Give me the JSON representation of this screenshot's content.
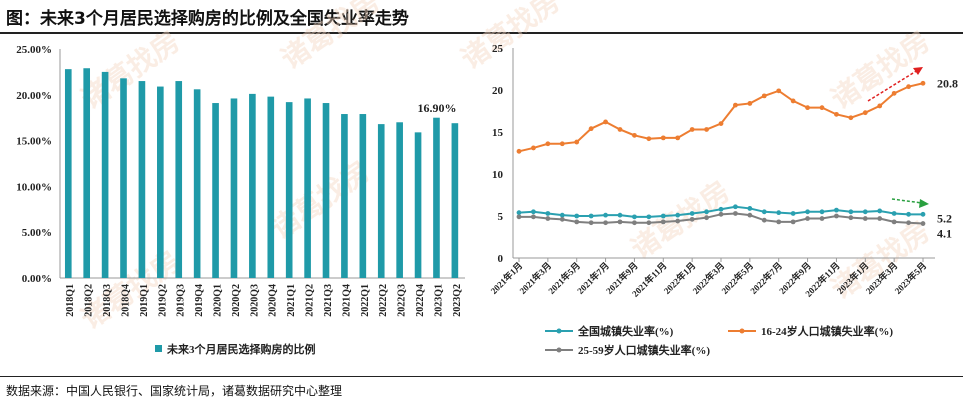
{
  "title": "图：未来3个月居民选择购房的比例及全国失业率走势",
  "note": "数据来源：中国人民银行、国家统计局，诸葛数据研究中心整理",
  "watermark": "诸葛找房",
  "chart_data": [
    {
      "type": "bar",
      "categories": [
        "2018Q1",
        "2018Q2",
        "2018Q3",
        "2018Q4",
        "2019Q1",
        "2019Q2",
        "2019Q3",
        "2019Q4",
        "2020Q1",
        "2020Q2",
        "2020Q3",
        "2020Q4",
        "2021Q1",
        "2021Q2",
        "2021Q3",
        "2021Q4",
        "2022Q1",
        "2022Q2",
        "2022Q3",
        "2022Q4",
        "2023Q1",
        "2023Q2"
      ],
      "series": [
        {
          "name": "未来3个月居民选择购房的比例",
          "values": [
            22.8,
            22.9,
            22.5,
            21.8,
            21.5,
            20.9,
            21.5,
            20.6,
            19.1,
            19.6,
            20.1,
            19.8,
            19.2,
            19.6,
            19.1,
            17.9,
            17.9,
            16.8,
            17.0,
            15.9,
            17.5,
            16.9
          ]
        }
      ],
      "yticks": [
        "0.00%",
        "5.00%",
        "10.00%",
        "15.00%",
        "20.00%",
        "25.00%"
      ],
      "ylim": [
        0,
        25
      ],
      "color": "#1f9aa8",
      "data_label": "16.90%",
      "legend": "bottom"
    },
    {
      "type": "line",
      "x": [
        "2021年1月",
        "2021年2月",
        "2021年3月",
        "2021年4月",
        "2021年5月",
        "2021年6月",
        "2021年7月",
        "2021年8月",
        "2021年9月",
        "2021年10月",
        "2021年11月",
        "2021年12月",
        "2022年1月",
        "2022年2月",
        "2022年3月",
        "2022年4月",
        "2022年5月",
        "2022年6月",
        "2022年7月",
        "2022年8月",
        "2022年9月",
        "2022年10月",
        "2022年11月",
        "2022年12月",
        "2023年1月",
        "2023年2月",
        "2023年3月",
        "2023年4月",
        "2023年5月"
      ],
      "xticks": [
        "2021年1月",
        "2021年3月",
        "2021年5月",
        "2021年7月",
        "2021年9月",
        "2021年11月",
        "2022年1月",
        "2022年3月",
        "2022年5月",
        "2022年7月",
        "2022年9月",
        "2022年11月",
        "2023年1月",
        "2023年3月",
        "2023年5月"
      ],
      "yticks": [
        "0",
        "5",
        "10",
        "15",
        "20",
        "25"
      ],
      "ylim": [
        0,
        25
      ],
      "legend": "bottom",
      "series": [
        {
          "name": "全国城镇失业率(%)",
          "color": "#2aa0b0",
          "values": [
            5.4,
            5.5,
            5.3,
            5.1,
            5.0,
            5.0,
            5.1,
            5.1,
            4.9,
            4.9,
            5.0,
            5.1,
            5.3,
            5.5,
            5.8,
            6.1,
            5.9,
            5.5,
            5.4,
            5.3,
            5.5,
            5.5,
            5.7,
            5.5,
            5.5,
            5.6,
            5.3,
            5.2,
            5.2
          ],
          "end_label": "5.2"
        },
        {
          "name": "16-24岁人口城镇失业率(%)",
          "color": "#ed7d31",
          "values": [
            12.7,
            13.1,
            13.6,
            13.6,
            13.8,
            15.4,
            16.2,
            15.3,
            14.6,
            14.2,
            14.3,
            14.3,
            15.3,
            15.3,
            16.0,
            18.2,
            18.4,
            19.3,
            19.9,
            18.7,
            17.9,
            17.9,
            17.1,
            16.7,
            17.3,
            18.1,
            19.6,
            20.4,
            20.8
          ],
          "end_label": "20.8"
        },
        {
          "name": "25-59岁人口城镇失业率(%)",
          "color": "#7f7f7f",
          "values": [
            4.9,
            4.9,
            4.7,
            4.6,
            4.3,
            4.2,
            4.2,
            4.3,
            4.2,
            4.2,
            4.3,
            4.4,
            4.6,
            4.8,
            5.2,
            5.3,
            5.1,
            4.5,
            4.3,
            4.3,
            4.7,
            4.7,
            5.0,
            4.8,
            4.7,
            4.7,
            4.3,
            4.2,
            4.1
          ],
          "end_label": "4.1"
        }
      ]
    }
  ]
}
